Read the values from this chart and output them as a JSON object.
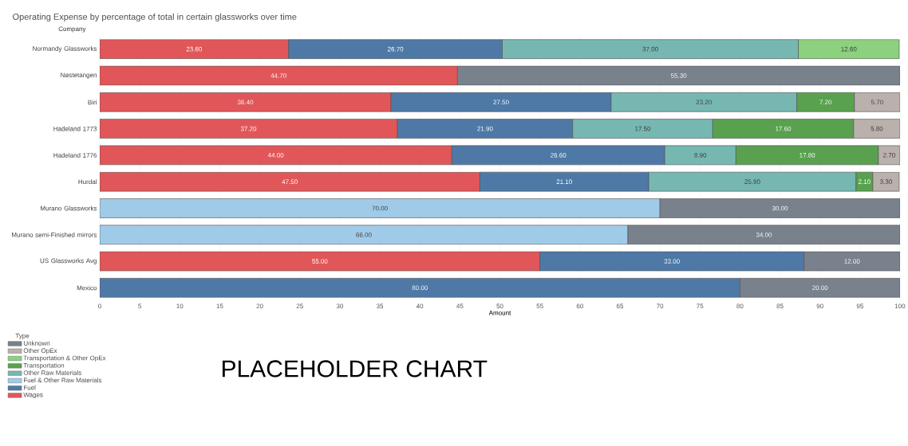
{
  "chart_data": {
    "type": "bar",
    "orientation": "horizontal",
    "stacked": true,
    "title": "Operating Expense by percentage of total in certain glassworks over time",
    "ylabel": "Company",
    "xlabel": "Amount",
    "legend_title": "Type",
    "categories": [
      "Normandy Glassworks",
      "Nøstetangen",
      "Biri",
      "Hadeland 1773",
      "Hadeland 1776",
      "Hurdal",
      "Murano Glassworks",
      "Murano semi-Finished mirrors",
      "US Glassworks Avg",
      "Mexico"
    ],
    "series": [
      {
        "name": "Wages",
        "color": "#e15759",
        "values": [
          23.6,
          44.7,
          36.4,
          37.2,
          44.0,
          47.5,
          null,
          null,
          55.0,
          null
        ],
        "value_labels": [
          "23.60",
          "44.70",
          "36.40",
          "37.20",
          "44.00",
          "47.50",
          null,
          null,
          "55.00",
          null
        ]
      },
      {
        "name": "Fuel",
        "color": "#4e79a7",
        "values": [
          26.7,
          null,
          27.5,
          21.9,
          26.6,
          21.1,
          null,
          null,
          33.0,
          80.0
        ],
        "value_labels": [
          "26.70",
          null,
          "27.50",
          "21.90",
          "26.60",
          "21.10",
          null,
          null,
          "33.00",
          "80.00"
        ]
      },
      {
        "name": "Fuel & Other Raw Materials",
        "color": "#a0cbe8",
        "values": [
          null,
          null,
          null,
          null,
          null,
          null,
          70.0,
          66.0,
          null,
          null
        ],
        "value_labels": [
          null,
          null,
          null,
          null,
          null,
          null,
          "70.00",
          "66.00",
          null,
          null
        ]
      },
      {
        "name": "Other Raw Materials",
        "color": "#76b7b2",
        "values": [
          37.0,
          null,
          23.2,
          17.5,
          8.9,
          25.9,
          null,
          null,
          null,
          null
        ],
        "value_labels": [
          "37.00",
          null,
          "23.20",
          "17.50",
          "8.90",
          "25.90",
          null,
          null,
          null,
          null
        ]
      },
      {
        "name": "Transportation",
        "color": "#59a14f",
        "values": [
          null,
          null,
          7.2,
          17.6,
          17.8,
          2.1,
          null,
          null,
          null,
          null
        ],
        "value_labels": [
          null,
          null,
          "7.20",
          "17.60",
          "17.80",
          "2.10",
          null,
          null,
          null,
          null
        ]
      },
      {
        "name": "Transportation & Other OpEx",
        "color": "#8cd17d",
        "values": [
          12.6,
          null,
          null,
          null,
          null,
          null,
          null,
          null,
          null,
          null
        ],
        "value_labels": [
          "12.60",
          null,
          null,
          null,
          null,
          null,
          null,
          null,
          null,
          null
        ]
      },
      {
        "name": "Other OpEx",
        "color": "#bab0ac",
        "values": [
          null,
          null,
          5.7,
          5.8,
          2.7,
          3.3,
          null,
          null,
          null,
          null
        ],
        "value_labels": [
          null,
          null,
          "5.70",
          "5.80",
          "2.70",
          "3.30",
          null,
          null,
          null,
          null
        ]
      },
      {
        "name": "Unknown",
        "color": "#79818c",
        "values": [
          null,
          55.3,
          null,
          null,
          null,
          null,
          30.0,
          34.0,
          12.0,
          20.0
        ],
        "value_labels": [
          null,
          "55.30",
          null,
          null,
          null,
          null,
          "30.00",
          "34.00",
          "12.00",
          "20.00"
        ]
      }
    ],
    "xlim": [
      0,
      100
    ],
    "xticks": [
      0,
      5,
      10,
      15,
      20,
      25,
      30,
      35,
      40,
      45,
      50,
      55,
      60,
      65,
      70,
      75,
      80,
      85,
      90,
      95,
      100
    ],
    "grid": "x",
    "legend": "bottom left",
    "annotations": [
      "PLACEHOLDER CHART"
    ]
  }
}
